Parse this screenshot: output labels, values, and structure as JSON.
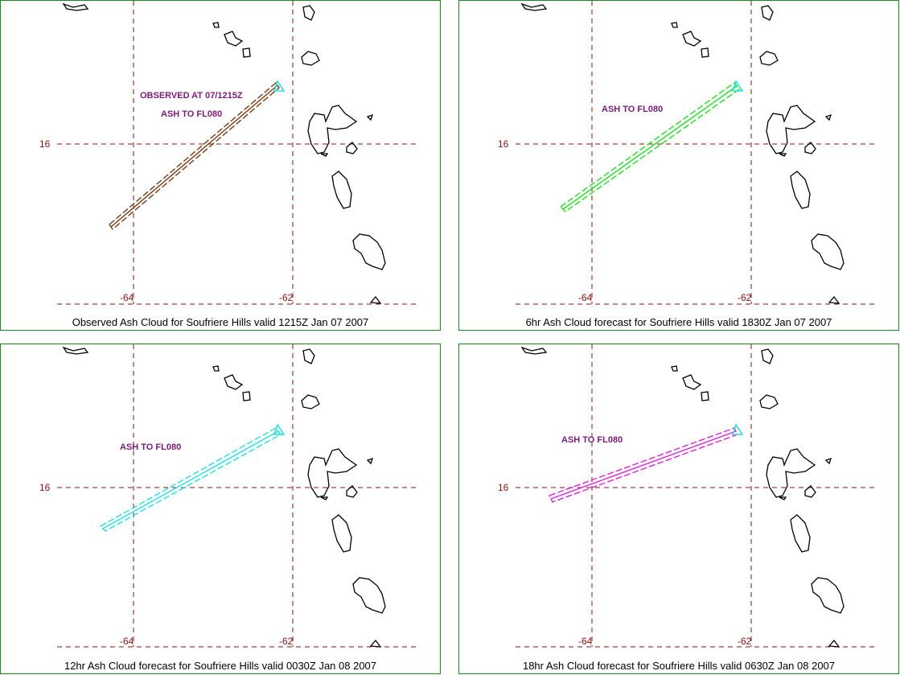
{
  "panels": [
    {
      "caption": "Observed Ash Cloud for Soufriere  Hills valid 1215Z Jan 07 2007",
      "labels": [
        "OBSERVED AT 07/1215Z",
        "ASH TO FL080"
      ],
      "color": "#7a3b14"
    },
    {
      "caption": "6hr Ash Cloud forecast for Soufriere  Hills valid 1830Z Jan 07 2007",
      "labels": [
        "ASH TO FL080"
      ],
      "color": "#22dd22"
    },
    {
      "caption": "12hr Ash Cloud forecast for Soufriere  Hills valid 0030Z Jan 08 2007",
      "labels": [
        "ASH TO FL080"
      ],
      "color": "#22e0e0"
    },
    {
      "caption": "18hr Ash Cloud forecast for Soufriere  Hills valid 0630Z Jan 08 2007",
      "labels": [
        "ASH TO FL080"
      ],
      "color": "#dd22dd"
    }
  ],
  "grid_labels": {
    "lat": "16",
    "lon_left": "-64",
    "lon_right": "-62"
  },
  "volcano_color": "#22e0e0",
  "grid_color": "#8b1010",
  "label_color": "#7a1a7a"
}
